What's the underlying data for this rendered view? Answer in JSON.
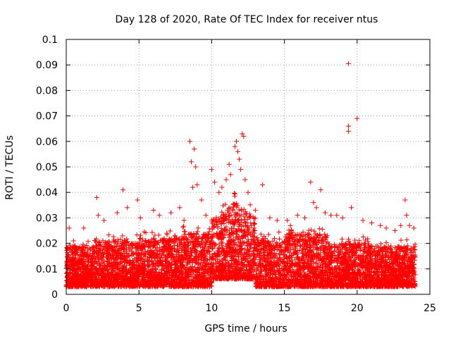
{
  "chart_data": {
    "type": "scatter",
    "title": "Day 128 of 2020, Rate Of TEC Index for receiver ntus",
    "xlabel": "GPS time / hours",
    "ylabel": "ROTI / TECUs",
    "xlim": [
      0,
      25
    ],
    "ylim": [
      0,
      0.1
    ],
    "x_ticks": [
      0,
      5,
      10,
      15,
      20,
      25
    ],
    "x_tick_labels": [
      "0",
      "5",
      "10",
      "15",
      "20",
      "25"
    ],
    "y_ticks": [
      0,
      0.01,
      0.02,
      0.03,
      0.04,
      0.05,
      0.06,
      0.07,
      0.08,
      0.09,
      0.1
    ],
    "y_tick_labels": [
      "0",
      "0.01",
      "0.02",
      "0.03",
      "0.04",
      "0.05",
      "0.06",
      "0.07",
      "0.08",
      "0.09",
      "0.1"
    ],
    "grid": true,
    "marker": "+",
    "color": "#ff0000",
    "series": [
      {
        "name": "ROTI",
        "points": [
          [
            0.2,
            0.026
          ],
          [
            0.5,
            0.021
          ],
          [
            1.2,
            0.026
          ],
          [
            2.1,
            0.038
          ],
          [
            2.2,
            0.031
          ],
          [
            2.6,
            0.029
          ],
          [
            3.5,
            0.032
          ],
          [
            3.9,
            0.041
          ],
          [
            4.2,
            0.034
          ],
          [
            4.9,
            0.037
          ],
          [
            5.1,
            0.03
          ],
          [
            6.0,
            0.033
          ],
          [
            6.4,
            0.031
          ],
          [
            7.2,
            0.032
          ],
          [
            7.8,
            0.034
          ],
          [
            8.1,
            0.029
          ],
          [
            8.5,
            0.06
          ],
          [
            8.6,
            0.052
          ],
          [
            8.8,
            0.057
          ],
          [
            8.9,
            0.05
          ],
          [
            8.7,
            0.042
          ],
          [
            9.0,
            0.043
          ],
          [
            9.3,
            0.037
          ],
          [
            9.6,
            0.031
          ],
          [
            10.0,
            0.049
          ],
          [
            10.2,
            0.044
          ],
          [
            10.5,
            0.04
          ],
          [
            10.7,
            0.042
          ],
          [
            11.0,
            0.045
          ],
          [
            11.2,
            0.051
          ],
          [
            11.3,
            0.047
          ],
          [
            11.6,
            0.058
          ],
          [
            11.7,
            0.06
          ],
          [
            11.8,
            0.056
          ],
          [
            11.9,
            0.053
          ],
          [
            12.0,
            0.049
          ],
          [
            12.1,
            0.063
          ],
          [
            12.2,
            0.062
          ],
          [
            12.3,
            0.045
          ],
          [
            12.5,
            0.04
          ],
          [
            13.0,
            0.033
          ],
          [
            13.5,
            0.043
          ],
          [
            14.0,
            0.03
          ],
          [
            14.5,
            0.029
          ],
          [
            15.2,
            0.029
          ],
          [
            15.9,
            0.031
          ],
          [
            16.4,
            0.03
          ],
          [
            16.8,
            0.044
          ],
          [
            17.0,
            0.036
          ],
          [
            17.2,
            0.034
          ],
          [
            17.5,
            0.041
          ],
          [
            17.8,
            0.032
          ],
          [
            18.2,
            0.031
          ],
          [
            18.6,
            0.031
          ],
          [
            19.0,
            0.03
          ],
          [
            19.4,
            0.0905
          ],
          [
            19.4,
            0.066
          ],
          [
            19.4,
            0.064
          ],
          [
            20.0,
            0.069
          ],
          [
            19.6,
            0.034
          ],
          [
            20.4,
            0.029
          ],
          [
            21.0,
            0.028
          ],
          [
            21.6,
            0.027
          ],
          [
            22.0,
            0.026
          ],
          [
            22.6,
            0.025
          ],
          [
            23.0,
            0.027
          ],
          [
            23.3,
            0.037
          ],
          [
            23.4,
            0.031
          ],
          [
            23.6,
            0.027
          ],
          [
            23.9,
            0.026
          ]
        ]
      }
    ]
  }
}
